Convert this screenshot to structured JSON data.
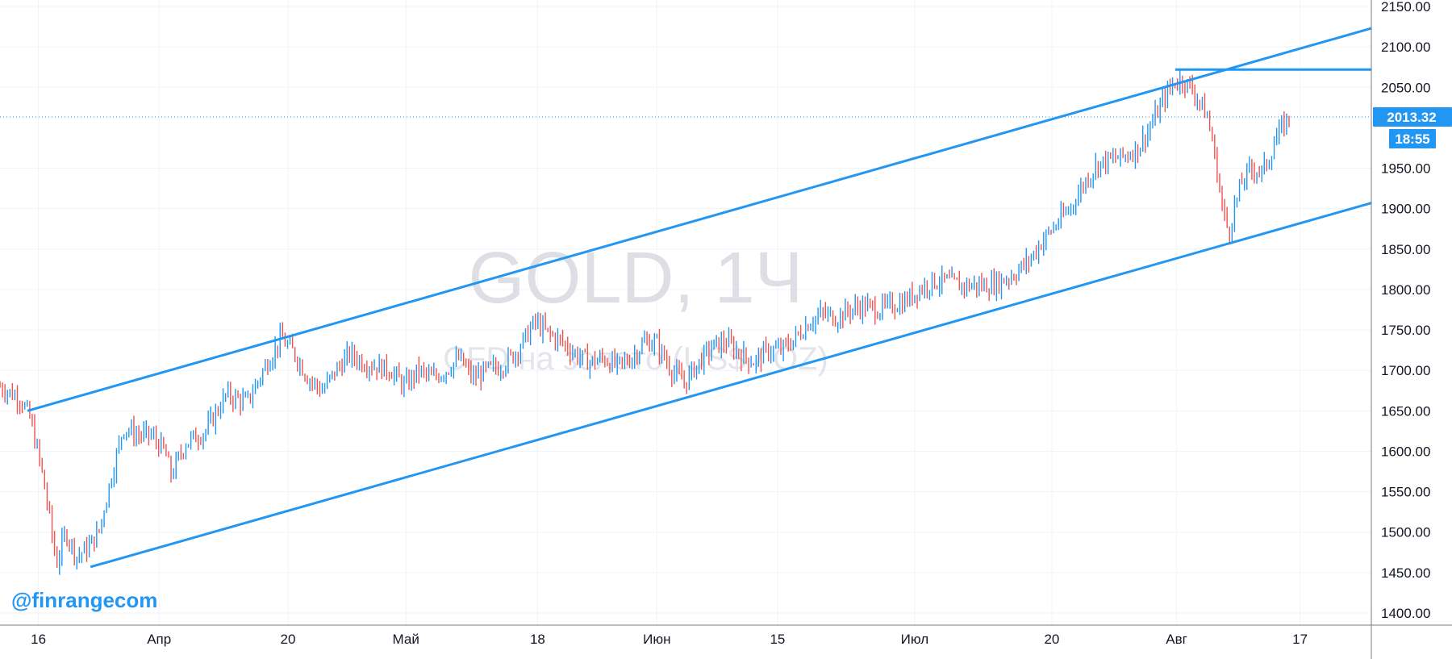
{
  "chart_data": {
    "type": "line",
    "title": "GOLD, 1Ч",
    "subtitle": "CFD на золото (US$ / OZ)",
    "ylim": [
      1400,
      2150
    ],
    "y_ticks": [
      "1400.00",
      "1450.00",
      "1500.00",
      "1550.00",
      "1600.00",
      "1650.00",
      "1700.00",
      "1750.00",
      "1800.00",
      "1850.00",
      "1900.00",
      "1950.00",
      "2050.00",
      "2100.00",
      "2150.00"
    ],
    "x_ticks": [
      {
        "label": "16",
        "t": 0.028
      },
      {
        "label": "Апр",
        "t": 0.116
      },
      {
        "label": "20",
        "t": 0.21
      },
      {
        "label": "Май",
        "t": 0.296
      },
      {
        "label": "18",
        "t": 0.392
      },
      {
        "label": "Июн",
        "t": 0.479
      },
      {
        "label": "15",
        "t": 0.567
      },
      {
        "label": "Июл",
        "t": 0.667
      },
      {
        "label": "20",
        "t": 0.767
      },
      {
        "label": "Авг",
        "t": 0.858
      },
      {
        "label": "17",
        "t": 0.948
      }
    ],
    "series": [
      {
        "points": [
          [
            0.0,
            1680
          ],
          [
            0.015,
            1665
          ],
          [
            0.022,
            1640
          ],
          [
            0.03,
            1580
          ],
          [
            0.036,
            1520
          ],
          [
            0.041,
            1460
          ],
          [
            0.048,
            1500
          ],
          [
            0.056,
            1470
          ],
          [
            0.064,
            1480
          ],
          [
            0.072,
            1500
          ],
          [
            0.08,
            1560
          ],
          [
            0.09,
            1630
          ],
          [
            0.1,
            1620
          ],
          [
            0.11,
            1620
          ],
          [
            0.12,
            1600
          ],
          [
            0.125,
            1570
          ],
          [
            0.135,
            1610
          ],
          [
            0.15,
            1625
          ],
          [
            0.165,
            1670
          ],
          [
            0.18,
            1660
          ],
          [
            0.195,
            1710
          ],
          [
            0.205,
            1740
          ],
          [
            0.215,
            1720
          ],
          [
            0.225,
            1690
          ],
          [
            0.235,
            1675
          ],
          [
            0.245,
            1700
          ],
          [
            0.255,
            1720
          ],
          [
            0.265,
            1710
          ],
          [
            0.275,
            1705
          ],
          [
            0.285,
            1700
          ],
          [
            0.295,
            1680
          ],
          [
            0.305,
            1700
          ],
          [
            0.315,
            1690
          ],
          [
            0.325,
            1700
          ],
          [
            0.335,
            1715
          ],
          [
            0.345,
            1690
          ],
          [
            0.355,
            1700
          ],
          [
            0.365,
            1705
          ],
          [
            0.375,
            1720
          ],
          [
            0.383,
            1740
          ],
          [
            0.39,
            1760
          ],
          [
            0.4,
            1745
          ],
          [
            0.41,
            1735
          ],
          [
            0.42,
            1720
          ],
          [
            0.43,
            1710
          ],
          [
            0.44,
            1715
          ],
          [
            0.45,
            1705
          ],
          [
            0.46,
            1715
          ],
          [
            0.47,
            1735
          ],
          [
            0.478,
            1735
          ],
          [
            0.483,
            1720
          ],
          [
            0.49,
            1700
          ],
          [
            0.496,
            1690
          ],
          [
            0.5,
            1685
          ],
          [
            0.505,
            1700
          ],
          [
            0.51,
            1710
          ],
          [
            0.52,
            1730
          ],
          [
            0.53,
            1735
          ],
          [
            0.54,
            1720
          ],
          [
            0.55,
            1710
          ],
          [
            0.56,
            1725
          ],
          [
            0.57,
            1725
          ],
          [
            0.58,
            1740
          ],
          [
            0.59,
            1760
          ],
          [
            0.6,
            1770
          ],
          [
            0.61,
            1765
          ],
          [
            0.62,
            1775
          ],
          [
            0.63,
            1780
          ],
          [
            0.64,
            1775
          ],
          [
            0.65,
            1780
          ],
          [
            0.66,
            1785
          ],
          [
            0.67,
            1800
          ],
          [
            0.68,
            1810
          ],
          [
            0.69,
            1810
          ],
          [
            0.7,
            1805
          ],
          [
            0.71,
            1805
          ],
          [
            0.72,
            1805
          ],
          [
            0.73,
            1810
          ],
          [
            0.74,
            1820
          ],
          [
            0.75,
            1835
          ],
          [
            0.76,
            1860
          ],
          [
            0.77,
            1880
          ],
          [
            0.78,
            1900
          ],
          [
            0.79,
            1930
          ],
          [
            0.8,
            1955
          ],
          [
            0.81,
            1960
          ],
          [
            0.82,
            1965
          ],
          [
            0.83,
            1975
          ],
          [
            0.84,
            2005
          ],
          [
            0.85,
            2040
          ],
          [
            0.856,
            2055
          ],
          [
            0.862,
            2060
          ],
          [
            0.868,
            2050
          ],
          [
            0.874,
            2035
          ],
          [
            0.88,
            2015
          ],
          [
            0.884,
            1985
          ],
          [
            0.888,
            1940
          ],
          [
            0.892,
            1895
          ],
          [
            0.896,
            1870
          ],
          [
            0.9,
            1900
          ],
          [
            0.905,
            1930
          ],
          [
            0.91,
            1945
          ],
          [
            0.915,
            1950
          ],
          [
            0.92,
            1945
          ],
          [
            0.925,
            1960
          ],
          [
            0.93,
            1985
          ],
          [
            0.935,
            2000
          ],
          [
            0.94,
            2013
          ]
        ]
      }
    ],
    "drawings": {
      "upper_channel": {
        "p1": [
          0.02,
          1650
        ],
        "p2": [
          1.0,
          2123
        ]
      },
      "lower_channel": {
        "p1": [
          0.066,
          1457
        ],
        "p2": [
          1.0,
          1907
        ]
      },
      "resistance": {
        "from": 0.857,
        "value": 2072
      }
    },
    "last_price": {
      "value": 2013.32,
      "label": "2013.32",
      "timer": "18:55"
    },
    "colors": {
      "up": "#2196f3",
      "down": "#ef5350",
      "line": "#2196f3",
      "grid": "#f0f3fa",
      "axis": "#787b86"
    }
  },
  "watermark": {
    "title": "GOLD, 1Ч",
    "subtitle": "CFD на золото (US$ / OZ)"
  },
  "brand": {
    "handle": "@finrangecom"
  }
}
